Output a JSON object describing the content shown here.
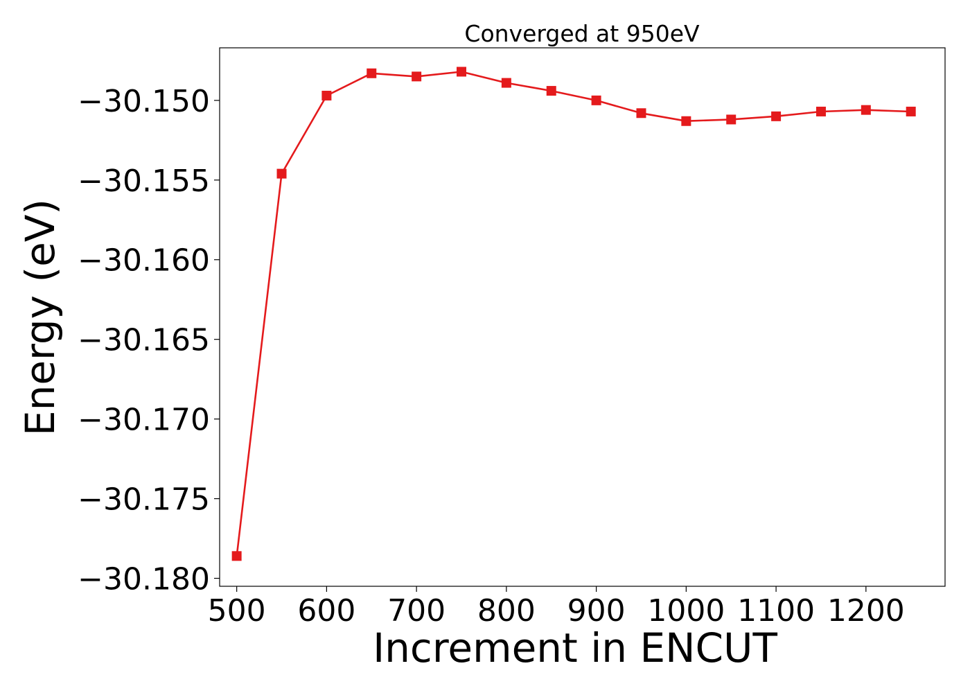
{
  "chart_data": {
    "type": "line",
    "title": "Converged at 950eV",
    "xlabel": "Increment in ENCUT",
    "ylabel": "Energy (eV)",
    "x": [
      500,
      550,
      600,
      650,
      700,
      750,
      800,
      850,
      900,
      950,
      1000,
      1050,
      1100,
      1150,
      1200,
      1250
    ],
    "series": [
      {
        "values": [
          -30.1786,
          -30.1546,
          -30.1497,
          -30.1483,
          -30.1485,
          -30.1482,
          -30.1489,
          -30.1494,
          -30.15,
          -30.1508,
          -30.1513,
          -30.1512,
          -30.151,
          -30.1507,
          -30.1506,
          -30.1507
        ],
        "color": "#e41a1c",
        "marker": "square"
      }
    ],
    "xlim": [
      481,
      1288
    ],
    "ylim": [
      -30.1805,
      -30.1467
    ],
    "xticks": [
      500,
      600,
      700,
      800,
      900,
      1000,
      1100,
      1200
    ],
    "xtick_labels": [
      "500",
      "600",
      "700",
      "800",
      "900",
      "1000",
      "1100",
      "1200"
    ],
    "yticks": [
      -30.15,
      -30.155,
      -30.16,
      -30.165,
      -30.17,
      -30.175,
      -30.18
    ],
    "ytick_labels": [
      "−30.150",
      "−30.155",
      "−30.160",
      "−30.165",
      "−30.170",
      "−30.175",
      "−30.180"
    ],
    "grid": false,
    "legend": "none"
  }
}
